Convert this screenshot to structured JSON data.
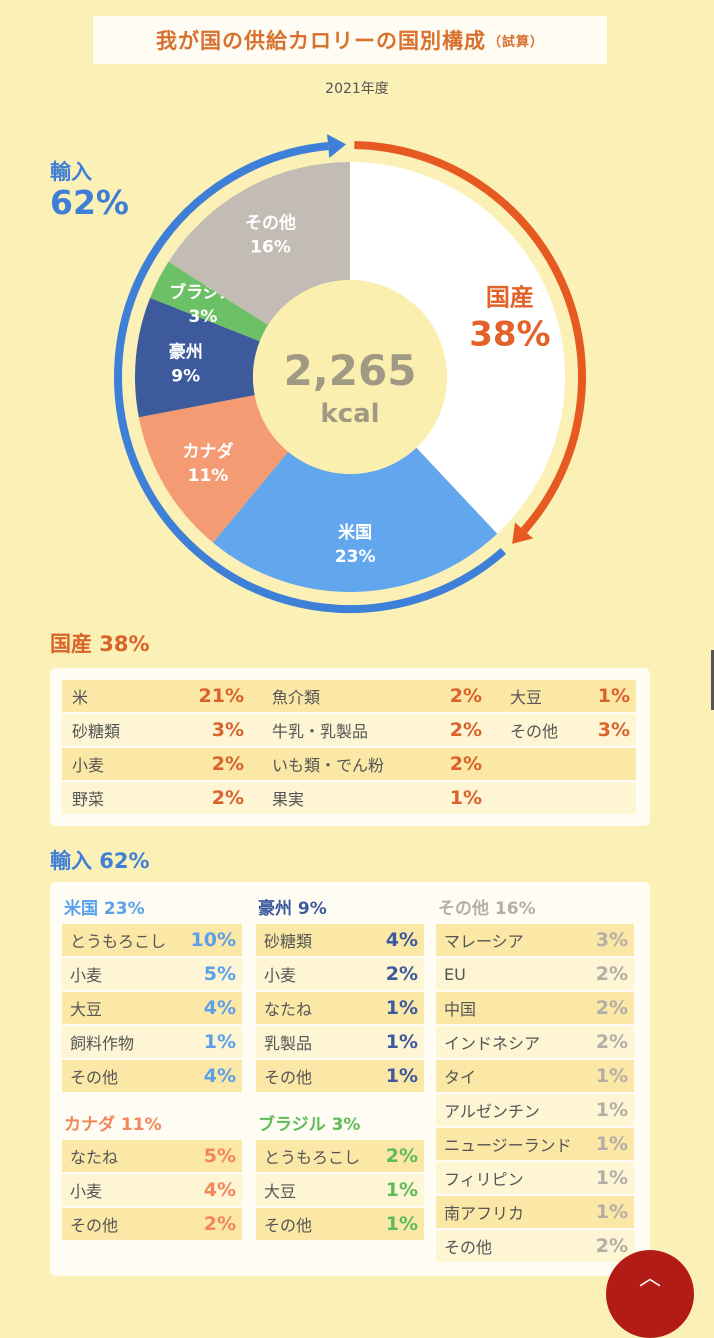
{
  "title": "我が国の供給カロリーの国別構成",
  "title_note": "（試算）",
  "year": "2021年度",
  "chart_data": {
    "type": "pie",
    "donut": true,
    "center_value": "2,265",
    "center_unit": "kcal",
    "slices": [
      {
        "label": "国産",
        "value": 38,
        "text": "38%",
        "color": "#ffffff",
        "text_color": "#e2622a"
      },
      {
        "label": "米国",
        "value": 23,
        "text": "23%",
        "color": "#62a6ee",
        "text_color": "#ffffff"
      },
      {
        "label": "カナダ",
        "value": 11,
        "text": "11%",
        "color": "#f59b74",
        "text_color": "#ffffff"
      },
      {
        "label": "豪州",
        "value": 9,
        "text": "9%",
        "color": "#3d5a9c",
        "text_color": "#ffffff"
      },
      {
        "label": "ブラジル",
        "value": 3,
        "text": "3%",
        "color": "#6cc167",
        "text_color": "#ffffff"
      },
      {
        "label": "その他",
        "value": 16,
        "text": "16%",
        "color": "#c3bcb4",
        "text_color": "#ffffff"
      }
    ],
    "domestic_arrow_color": "#e65a22",
    "import_arrow_color": "#3e7fd8"
  },
  "imports_label": {
    "name": "輸入",
    "pct": "62%"
  },
  "domestic": {
    "heading": "国産 38%",
    "color": "#d9632a",
    "columns": [
      [
        [
          "米",
          "21%"
        ],
        [
          "砂糖類",
          "3%"
        ],
        [
          "小麦",
          "2%"
        ],
        [
          "野菜",
          "2%"
        ]
      ],
      [
        [
          "魚介類",
          "2%"
        ],
        [
          "牛乳・乳製品",
          "2%"
        ],
        [
          "いも類・でん粉",
          "2%"
        ],
        [
          "果実",
          "1%"
        ]
      ],
      [
        [
          "大豆",
          "1%"
        ],
        [
          "その他",
          "3%"
        ]
      ]
    ]
  },
  "imports": {
    "heading": "輸入 62%",
    "color": "#3e7fd8",
    "groups": [
      {
        "title": "米国 23%",
        "color": "#5aa0ea",
        "items": [
          [
            "とうもろこし",
            "10%"
          ],
          [
            "小麦",
            "5%"
          ],
          [
            "大豆",
            "4%"
          ],
          [
            "飼料作物",
            "1%"
          ],
          [
            "その他",
            "4%"
          ]
        ]
      },
      {
        "title": "豪州 9%",
        "color": "#3d5a9c",
        "items": [
          [
            "砂糖類",
            "4%"
          ],
          [
            "小麦",
            "2%"
          ],
          [
            "なたね",
            "1%"
          ],
          [
            "乳製品",
            "1%"
          ],
          [
            "その他",
            "1%"
          ]
        ]
      },
      {
        "title": "その他 16%",
        "color": "#b5aea6",
        "items": [
          [
            "マレーシア",
            "3%"
          ],
          [
            "EU",
            "2%"
          ],
          [
            "中国",
            "2%"
          ],
          [
            "インドネシア",
            "2%"
          ],
          [
            "タイ",
            "1%"
          ],
          [
            "アルゼンチン",
            "1%"
          ],
          [
            "ニュージーランド",
            "1%"
          ],
          [
            "フィリピン",
            "1%"
          ],
          [
            "南アフリカ",
            "1%"
          ],
          [
            "その他",
            "2%"
          ]
        ]
      },
      {
        "title": "カナダ 11%",
        "color": "#f0875c",
        "items": [
          [
            "なたね",
            "5%"
          ],
          [
            "小麦",
            "4%"
          ],
          [
            "その他",
            "2%"
          ]
        ]
      },
      {
        "title": "ブラジル 3%",
        "color": "#5fbb5a",
        "items": [
          [
            "とうもろこし",
            "2%"
          ],
          [
            "大豆",
            "1%"
          ],
          [
            "その他",
            "1%"
          ]
        ]
      }
    ]
  }
}
